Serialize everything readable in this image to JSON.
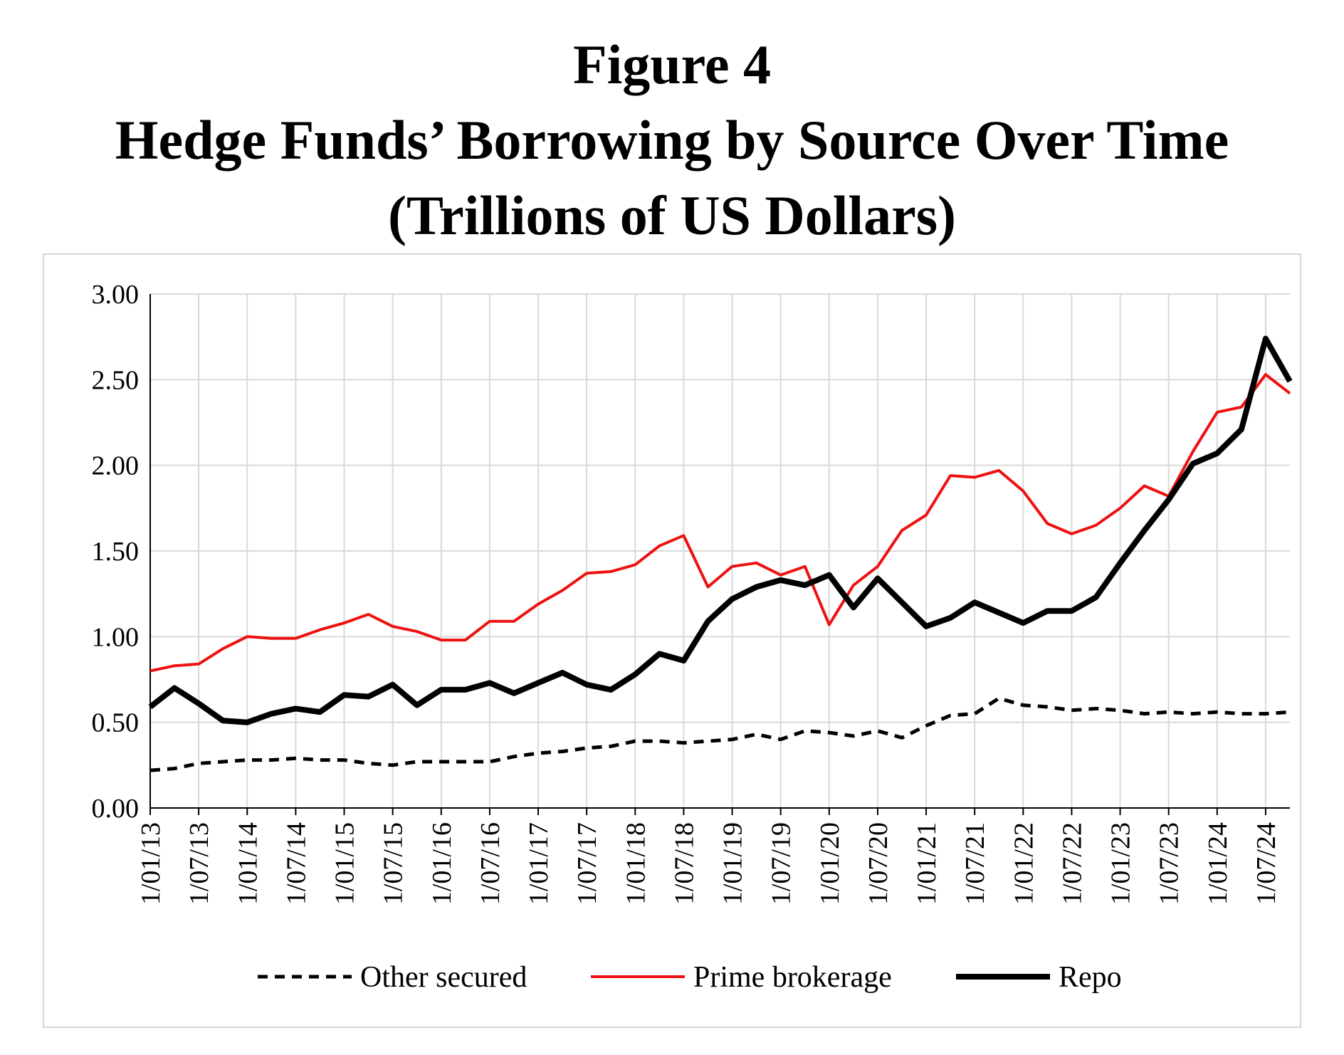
{
  "figure": {
    "label": "Figure 4",
    "title": "Hedge Funds’ Borrowing by Source Over Time",
    "subtitle": "(Trillions of US Dollars)"
  },
  "colors": {
    "other": "#000000",
    "prime": "#ee1111",
    "repo": "#000000",
    "grid": "#d9d9d9"
  },
  "chart_data": {
    "type": "line",
    "title": "Hedge Funds’ Borrowing by Source Over Time",
    "subtitle": "(Trillions of US Dollars)",
    "ylim": [
      0,
      3
    ],
    "yticks": [
      "0.00",
      "0.50",
      "1.00",
      "1.50",
      "2.00",
      "2.50",
      "3.00"
    ],
    "grid": true,
    "legend": "bottom",
    "x_start": "2013-01",
    "x_end": "2024-10",
    "xtick_labels": [
      "1/01/13",
      "1/07/13",
      "1/01/14",
      "1/07/14",
      "1/01/15",
      "1/07/15",
      "1/01/16",
      "1/07/16",
      "1/01/17",
      "1/07/17",
      "1/01/18",
      "1/07/18",
      "1/01/19",
      "1/07/19",
      "1/01/20",
      "1/07/20",
      "1/01/21",
      "1/07/21",
      "1/01/22",
      "1/07/22",
      "1/01/23",
      "1/07/23",
      "1/01/24",
      "1/07/24"
    ],
    "x": [
      "2013-01",
      "2013-04",
      "2013-07",
      "2013-10",
      "2014-01",
      "2014-04",
      "2014-07",
      "2014-10",
      "2015-01",
      "2015-04",
      "2015-07",
      "2015-10",
      "2016-01",
      "2016-04",
      "2016-07",
      "2016-10",
      "2017-01",
      "2017-04",
      "2017-07",
      "2017-10",
      "2018-01",
      "2018-04",
      "2018-07",
      "2018-10",
      "2019-01",
      "2019-04",
      "2019-07",
      "2019-10",
      "2020-01",
      "2020-04",
      "2020-07",
      "2020-10",
      "2021-01",
      "2021-04",
      "2021-07",
      "2021-10",
      "2022-01",
      "2022-04",
      "2022-07",
      "2022-10",
      "2023-01",
      "2023-04",
      "2023-07",
      "2023-10",
      "2024-01",
      "2024-04",
      "2024-07",
      "2024-10"
    ],
    "series": [
      {
        "name": "Other secured",
        "style": "dashed",
        "values": [
          0.22,
          0.23,
          0.26,
          0.27,
          0.28,
          0.28,
          0.29,
          0.28,
          0.28,
          0.26,
          0.25,
          0.27,
          0.27,
          0.27,
          0.27,
          0.3,
          0.32,
          0.33,
          0.35,
          0.36,
          0.39,
          0.39,
          0.38,
          0.39,
          0.4,
          0.43,
          0.4,
          0.45,
          0.44,
          0.42,
          0.45,
          0.41,
          0.48,
          0.54,
          0.55,
          0.64,
          0.6,
          0.59,
          0.57,
          0.58,
          0.57,
          0.55,
          0.56,
          0.55,
          0.56,
          0.55,
          0.55,
          0.56
        ]
      },
      {
        "name": "Prime brokerage",
        "style": "solid-red",
        "values": [
          0.8,
          0.83,
          0.84,
          0.93,
          1.0,
          0.99,
          0.99,
          1.04,
          1.08,
          1.13,
          1.06,
          1.03,
          0.98,
          0.98,
          1.09,
          1.09,
          1.19,
          1.27,
          1.37,
          1.38,
          1.42,
          1.53,
          1.59,
          1.29,
          1.41,
          1.43,
          1.36,
          1.41,
          1.07,
          1.3,
          1.41,
          1.62,
          1.71,
          1.94,
          1.93,
          1.97,
          1.85,
          1.66,
          1.6,
          1.65,
          1.75,
          1.88,
          1.82,
          2.08,
          2.31,
          2.34,
          2.53,
          2.42
        ]
      },
      {
        "name": "Repo",
        "style": "solid-thick",
        "values": [
          0.59,
          0.7,
          0.61,
          0.51,
          0.5,
          0.55,
          0.58,
          0.56,
          0.66,
          0.65,
          0.72,
          0.6,
          0.69,
          0.69,
          0.73,
          0.67,
          0.73,
          0.79,
          0.72,
          0.69,
          0.78,
          0.9,
          0.86,
          1.09,
          1.22,
          1.29,
          1.33,
          1.3,
          1.36,
          1.17,
          1.34,
          1.2,
          1.06,
          1.11,
          1.2,
          1.14,
          1.08,
          1.15,
          1.15,
          1.23,
          1.43,
          1.62,
          1.8,
          2.01,
          2.07,
          2.21,
          2.74,
          2.49
        ]
      }
    ]
  }
}
